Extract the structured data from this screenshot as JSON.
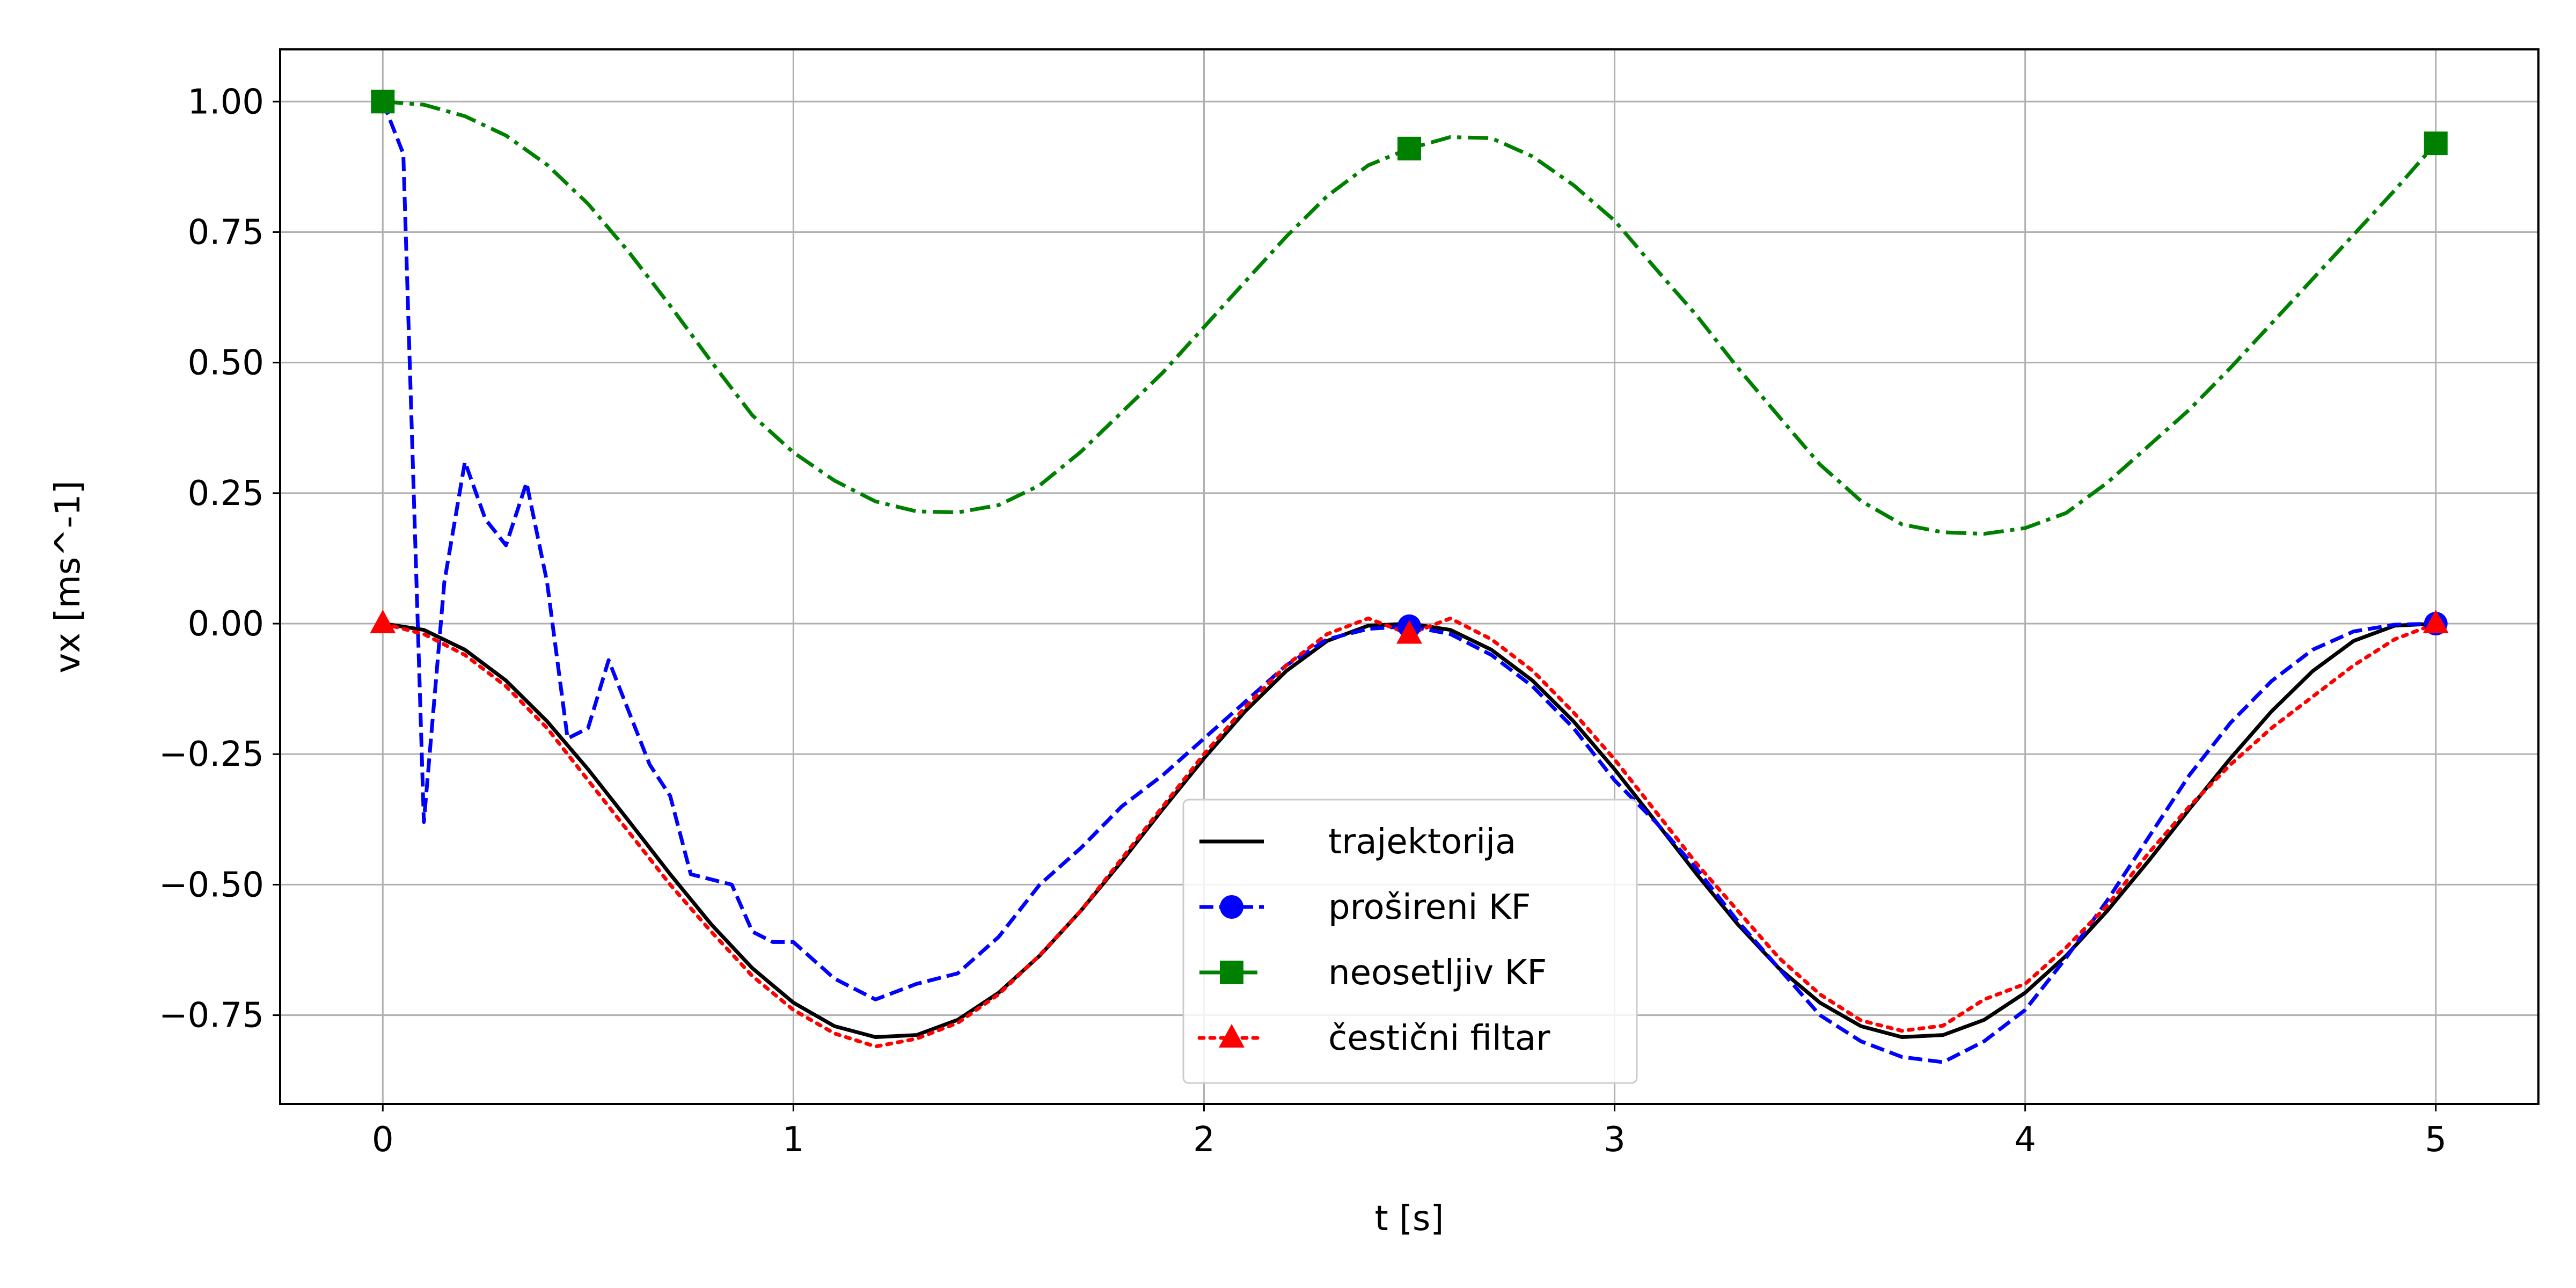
{
  "chart_data": {
    "type": "line",
    "title": "",
    "xlabel": "t [s]",
    "ylabel": "vx [ms^-1]",
    "xlim": [
      -0.25,
      5.25
    ],
    "ylim": [
      -0.92,
      1.1
    ],
    "xticks": [
      0,
      1,
      2,
      3,
      4,
      5
    ],
    "xtick_labels": [
      "0",
      "1",
      "2",
      "3",
      "4",
      "5"
    ],
    "yticks": [
      1.0,
      0.75,
      0.5,
      0.25,
      0.0,
      -0.25,
      -0.5,
      -0.75
    ],
    "ytick_labels": [
      "1.00",
      "0.75",
      "0.50",
      "0.25",
      "0.00",
      "−0.25",
      "−0.50",
      "−0.75"
    ],
    "grid": true,
    "legend_position": "bottom-center",
    "series": [
      {
        "name": "trajektorija",
        "color": "#000000",
        "linestyle": "solid",
        "marker": "none",
        "x": [
          0,
          0.1,
          0.2,
          0.3,
          0.4,
          0.5,
          0.6,
          0.7,
          0.8,
          0.9,
          1.0,
          1.1,
          1.2,
          1.3,
          1.4,
          1.5,
          1.6,
          1.7,
          1.8,
          1.9,
          2.0,
          2.1,
          2.2,
          2.3,
          2.4,
          2.5,
          2.6,
          2.7,
          2.8,
          2.9,
          3.0,
          3.1,
          3.2,
          3.3,
          3.4,
          3.5,
          3.6,
          3.7,
          3.8,
          3.9,
          4.0,
          4.1,
          4.2,
          4.3,
          4.4,
          4.5,
          4.6,
          4.7,
          4.8,
          4.9,
          5.0
        ],
        "y": [
          0.0,
          -0.012,
          -0.05,
          -0.109,
          -0.187,
          -0.279,
          -0.379,
          -0.48,
          -0.576,
          -0.66,
          -0.726,
          -0.771,
          -0.792,
          -0.788,
          -0.759,
          -0.707,
          -0.636,
          -0.55,
          -0.455,
          -0.355,
          -0.258,
          -0.168,
          -0.091,
          -0.033,
          -0.004,
          0.0,
          -0.012,
          -0.05,
          -0.109,
          -0.187,
          -0.279,
          -0.379,
          -0.48,
          -0.576,
          -0.66,
          -0.726,
          -0.771,
          -0.792,
          -0.788,
          -0.759,
          -0.707,
          -0.636,
          -0.55,
          -0.455,
          -0.355,
          -0.258,
          -0.168,
          -0.091,
          -0.033,
          -0.004,
          0.0
        ]
      },
      {
        "name": "prošireni KF",
        "color": "#0000ff",
        "linestyle": "dashed",
        "marker": "circle",
        "marker_indices": [
          0,
          25,
          50
        ],
        "x": [
          0,
          0.05,
          0.1,
          0.15,
          0.2,
          0.25,
          0.3,
          0.35,
          0.4,
          0.45,
          0.5,
          0.55,
          0.6,
          0.65,
          0.7,
          0.75,
          0.8,
          0.85,
          0.9,
          0.95,
          1.0,
          1.1,
          1.2,
          1.3,
          1.4,
          1.5,
          1.6,
          1.7,
          1.8,
          1.9,
          2.0,
          2.1,
          2.2,
          2.3,
          2.4,
          2.5,
          2.6,
          2.7,
          2.8,
          2.9,
          3.0,
          3.1,
          3.2,
          3.3,
          3.4,
          3.5,
          3.6,
          3.7,
          3.8,
          3.9,
          4.0,
          4.1,
          4.2,
          4.3,
          4.4,
          4.5,
          4.6,
          4.7,
          4.8,
          4.9,
          5.0
        ],
        "y": [
          1.0,
          0.9,
          -0.38,
          0.08,
          0.31,
          0.2,
          0.15,
          0.27,
          0.08,
          -0.22,
          -0.2,
          -0.07,
          -0.17,
          -0.27,
          -0.33,
          -0.48,
          -0.49,
          -0.5,
          -0.59,
          -0.61,
          -0.61,
          -0.68,
          -0.72,
          -0.69,
          -0.67,
          -0.6,
          -0.5,
          -0.43,
          -0.35,
          -0.29,
          -0.22,
          -0.15,
          -0.08,
          -0.03,
          -0.01,
          -0.005,
          -0.02,
          -0.06,
          -0.12,
          -0.2,
          -0.3,
          -0.38,
          -0.47,
          -0.57,
          -0.66,
          -0.75,
          -0.8,
          -0.83,
          -0.84,
          -0.8,
          -0.74,
          -0.64,
          -0.53,
          -0.41,
          -0.29,
          -0.19,
          -0.11,
          -0.05,
          -0.015,
          -0.002,
          0.0
        ]
      },
      {
        "name": "neosetljiv KF",
        "color": "#008000",
        "linestyle": "dashdot",
        "marker": "square",
        "marker_indices": [
          0,
          25,
          50
        ],
        "x": [
          0,
          0.1,
          0.2,
          0.3,
          0.4,
          0.5,
          0.6,
          0.7,
          0.8,
          0.9,
          1.0,
          1.1,
          1.2,
          1.3,
          1.4,
          1.5,
          1.6,
          1.7,
          1.8,
          1.9,
          2.0,
          2.1,
          2.2,
          2.3,
          2.4,
          2.5,
          2.6,
          2.7,
          2.8,
          2.9,
          3.0,
          3.1,
          3.2,
          3.3,
          3.4,
          3.5,
          3.6,
          3.7,
          3.8,
          3.9,
          4.0,
          4.1,
          4.2,
          4.3,
          4.4,
          4.5,
          4.6,
          4.7,
          4.8,
          4.9,
          5.0
        ],
        "y": [
          1.0,
          0.994,
          0.972,
          0.935,
          0.879,
          0.804,
          0.711,
          0.609,
          0.502,
          0.399,
          0.328,
          0.274,
          0.234,
          0.215,
          0.213,
          0.227,
          0.265,
          0.329,
          0.405,
          0.481,
          0.568,
          0.655,
          0.741,
          0.819,
          0.878,
          0.91,
          0.932,
          0.93,
          0.895,
          0.84,
          0.772,
          0.68,
          0.59,
          0.49,
          0.397,
          0.305,
          0.235,
          0.19,
          0.175,
          0.172,
          0.183,
          0.212,
          0.27,
          0.34,
          0.41,
          0.49,
          0.575,
          0.66,
          0.745,
          0.83,
          0.92
        ]
      },
      {
        "name": "čestični filtar",
        "color": "#ff0000",
        "linestyle": "dotted",
        "marker": "triangle",
        "marker_indices": [
          0,
          25,
          50
        ],
        "x": [
          0,
          0.1,
          0.2,
          0.3,
          0.4,
          0.5,
          0.6,
          0.7,
          0.8,
          0.9,
          1.0,
          1.1,
          1.2,
          1.3,
          1.4,
          1.5,
          1.6,
          1.7,
          1.8,
          1.9,
          2.0,
          2.1,
          2.2,
          2.3,
          2.4,
          2.5,
          2.6,
          2.7,
          2.8,
          2.9,
          3.0,
          3.1,
          3.2,
          3.3,
          3.4,
          3.5,
          3.6,
          3.7,
          3.8,
          3.9,
          4.0,
          4.1,
          4.2,
          4.3,
          4.4,
          4.5,
          4.6,
          4.7,
          4.8,
          4.9,
          5.0
        ],
        "y": [
          0.0,
          -0.02,
          -0.06,
          -0.12,
          -0.2,
          -0.3,
          -0.4,
          -0.5,
          -0.59,
          -0.675,
          -0.74,
          -0.785,
          -0.81,
          -0.795,
          -0.765,
          -0.71,
          -0.635,
          -0.55,
          -0.45,
          -0.35,
          -0.25,
          -0.16,
          -0.08,
          -0.02,
          0.01,
          -0.02,
          0.01,
          -0.03,
          -0.09,
          -0.17,
          -0.26,
          -0.36,
          -0.46,
          -0.55,
          -0.64,
          -0.71,
          -0.76,
          -0.78,
          -0.77,
          -0.72,
          -0.69,
          -0.62,
          -0.54,
          -0.44,
          -0.35,
          -0.27,
          -0.2,
          -0.14,
          -0.08,
          -0.03,
          0.0
        ]
      }
    ]
  }
}
